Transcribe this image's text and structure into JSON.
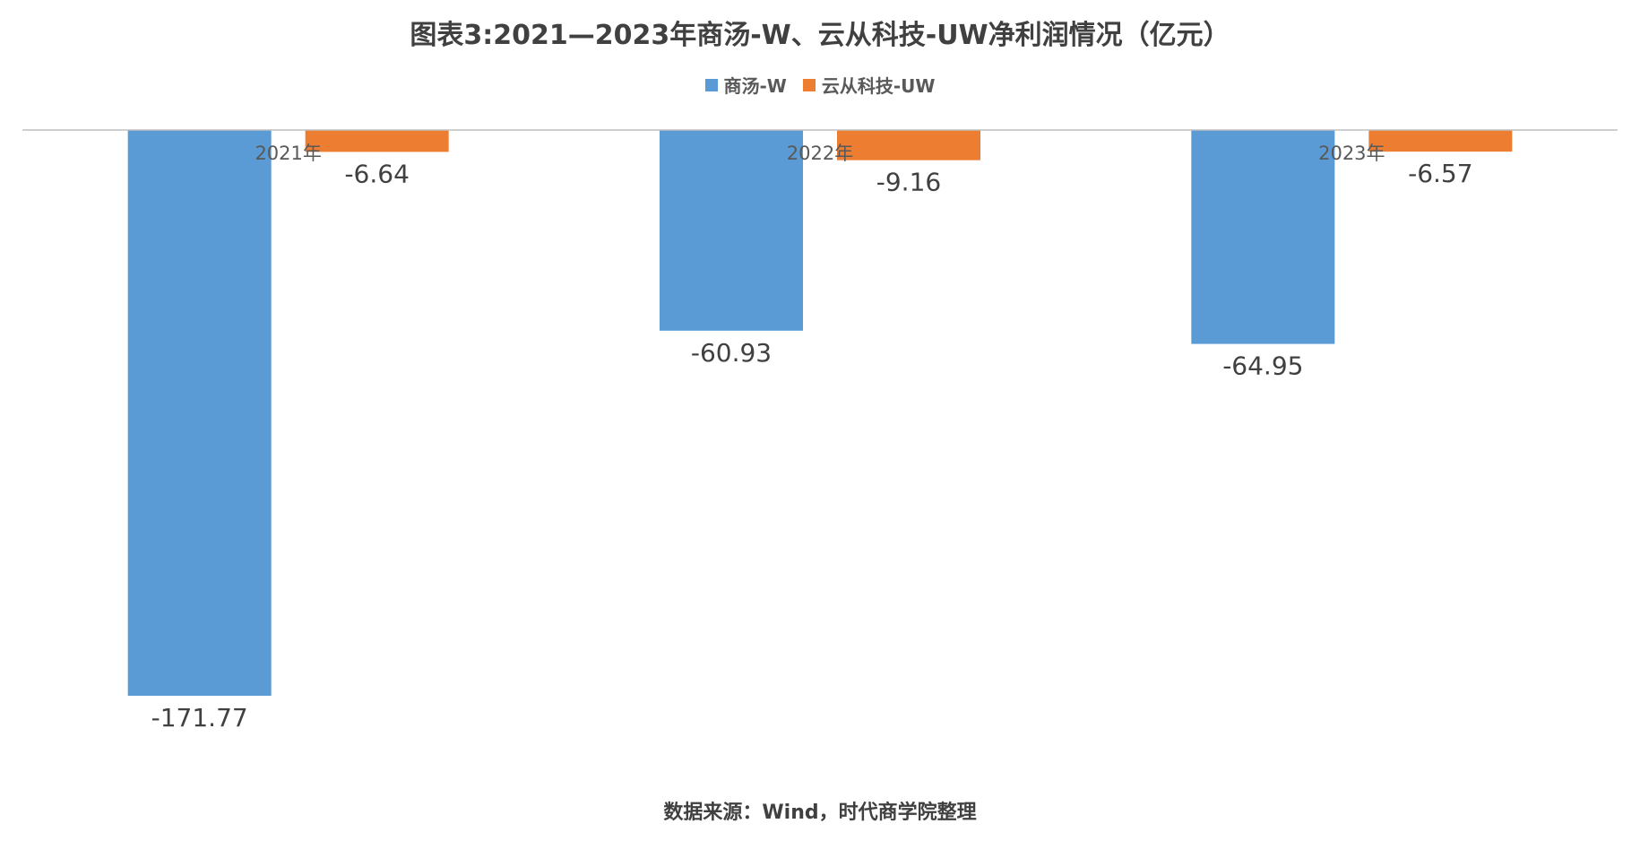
{
  "title": "图表3:2021—2023年商汤-W、云从科技-UW净利润情况（亿元）",
  "source": "数据来源：Wind，时代商学院整理",
  "colors": {
    "series1": "#5b9bd5",
    "series2": "#ed7d31",
    "axis": "#bfbfbf",
    "label": "#404040",
    "tick": "#595959"
  },
  "chart_data": {
    "type": "bar",
    "categories": [
      "2021年",
      "2022年",
      "2023年"
    ],
    "series": [
      {
        "name": "商汤-W",
        "values": [
          -171.77,
          -60.93,
          -64.95
        ]
      },
      {
        "name": "云从科技-UW",
        "values": [
          -6.64,
          -9.16,
          -6.57
        ]
      }
    ],
    "ylim": [
      -180,
      0
    ],
    "grid": false,
    "legend": "top-center",
    "data_labels": [
      [
        "-171.77",
        "-60.93",
        "-64.95"
      ],
      [
        "-6.64",
        "-9.16",
        "-6.57"
      ]
    ]
  }
}
